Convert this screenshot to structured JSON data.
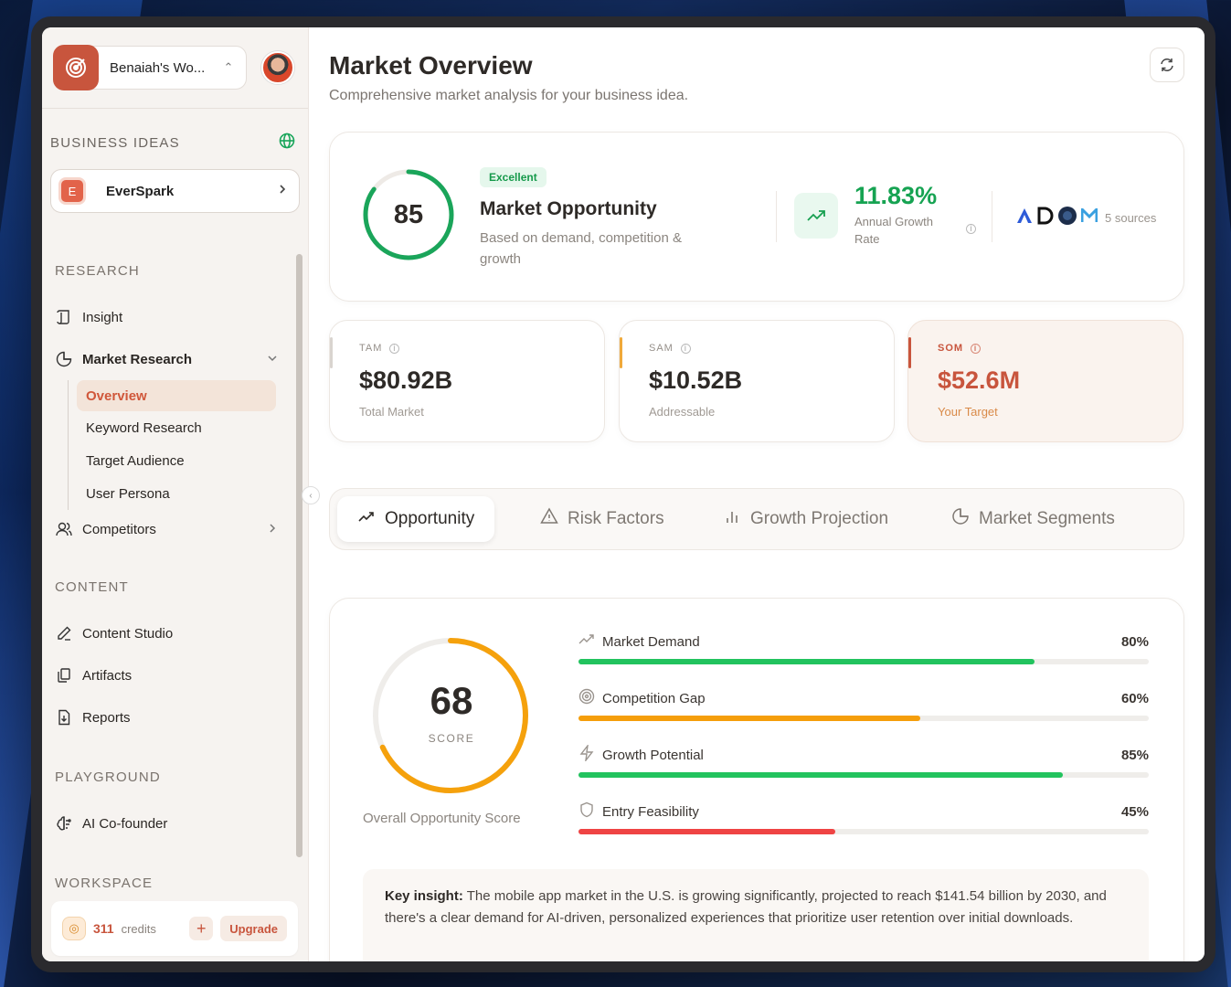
{
  "workspace": {
    "name": "Benaiah's Wo..."
  },
  "sidebar": {
    "business_ideas_label": "BUSINESS IDEAS",
    "business": {
      "initial": "E",
      "name": "EverSpark"
    },
    "research_label": "RESEARCH",
    "insight": "Insight",
    "market_research": "Market Research",
    "sub": [
      "Overview",
      "Keyword Research",
      "Target Audience",
      "User Persona"
    ],
    "competitors": "Competitors",
    "content_label": "CONTENT",
    "content_studio": "Content Studio",
    "artifacts": "Artifacts",
    "reports": "Reports",
    "playground_label": "PLAYGROUND",
    "ai_cofounder": "AI Co-founder",
    "workspace_label": "WORKSPACE",
    "credits_value": "311",
    "credits_label": "credits",
    "upgrade": "Upgrade"
  },
  "header": {
    "title": "Market Overview",
    "subtitle": "Comprehensive market analysis for your business idea."
  },
  "opportunity": {
    "score": "85",
    "score_value": 85,
    "badge": "Excellent",
    "title": "Market Opportunity",
    "subtitle": "Based on demand, competition & growth",
    "growth_value": "11.83%",
    "growth_label": "Annual Growth Rate",
    "sources": "5 sources"
  },
  "metrics": [
    {
      "label": "TAM",
      "value": "$80.92B",
      "sub": "Total Market",
      "color": "#d9d4cf"
    },
    {
      "label": "SAM",
      "value": "$10.52B",
      "sub": "Addressable",
      "color": "#f0a93a"
    },
    {
      "label": "SOM",
      "value": "$52.6M",
      "sub": "Your Target",
      "color": "#c8553d"
    }
  ],
  "tabs": [
    "Opportunity",
    "Risk Factors",
    "Growth Projection",
    "Market Segments"
  ],
  "score": {
    "value": "68",
    "value_num": 68,
    "label": "SCORE",
    "caption": "Overall Opportunity Score"
  },
  "factors": [
    {
      "name": "Market Demand",
      "pct": "80%",
      "value": 0.8,
      "color": "#22c35e"
    },
    {
      "name": "Competition Gap",
      "pct": "60%",
      "value": 0.6,
      "color": "#f59e0b"
    },
    {
      "name": "Growth Potential",
      "pct": "85%",
      "value": 0.85,
      "color": "#22c35e"
    },
    {
      "name": "Entry Feasibility",
      "pct": "45%",
      "value": 0.45,
      "color": "#ef4444"
    }
  ],
  "insight": {
    "label": "Key insight:",
    "text": " The mobile app market in the U.S. is growing significantly, projected to reach $141.54 billion by 2030, and there's a clear demand for AI-driven, personalized experiences that prioritize user retention over initial downloads."
  }
}
